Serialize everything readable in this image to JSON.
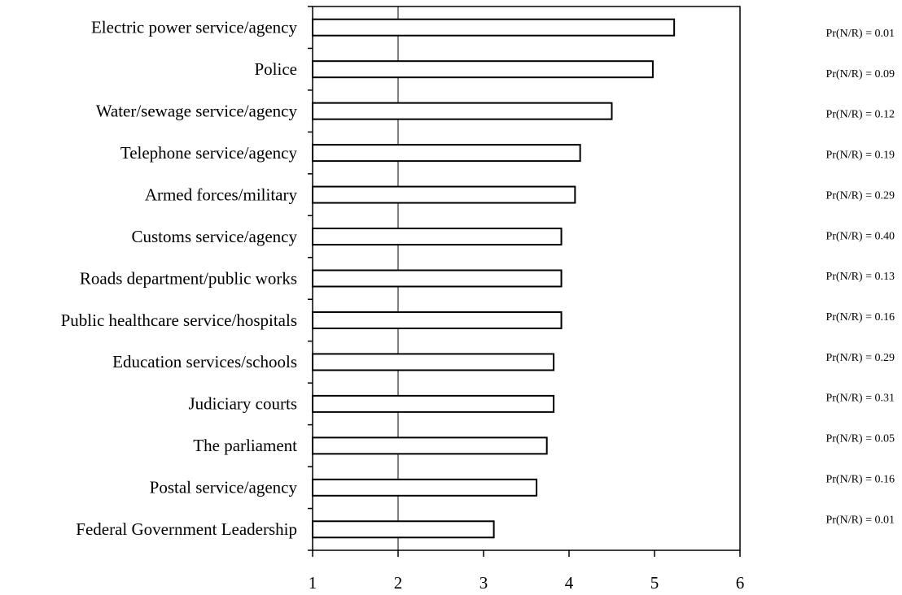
{
  "chart_data": {
    "type": "hbar",
    "categories": [
      "Electric power service/agency",
      "Police",
      "Water/sewage service/agency",
      "Telephone service/agency",
      "Armed forces/military",
      "Customs service/agency",
      "Roads department/public works",
      "Public healthcare service/hospitals",
      "Education services/schools",
      "Judiciary courts",
      "The parliament",
      "Postal service/agency",
      "Federal Government Leadership"
    ],
    "values": [
      5.23,
      4.98,
      4.5,
      4.13,
      4.07,
      3.91,
      3.91,
      3.91,
      3.82,
      3.82,
      3.74,
      3.62,
      3.12
    ],
    "annotations": [
      "Pr(N/R) = 0.01",
      "Pr(N/R) = 0.09",
      "Pr(N/R) = 0.12",
      "Pr(N/R) = 0.19",
      "Pr(N/R) = 0.29",
      "Pr(N/R) = 0.40",
      "Pr(N/R) = 0.13",
      "Pr(N/R) = 0.16",
      "Pr(N/R) = 0.29",
      "Pr(N/R) = 0.31",
      "Pr(N/R) = 0.05",
      "Pr(N/R) = 0.16",
      "Pr(N/R) = 0.01"
    ],
    "color": "#ffffff",
    "xlim": [
      1,
      6
    ],
    "xticks": [
      1,
      2,
      3,
      4,
      5,
      6
    ],
    "reference_x": 2
  }
}
